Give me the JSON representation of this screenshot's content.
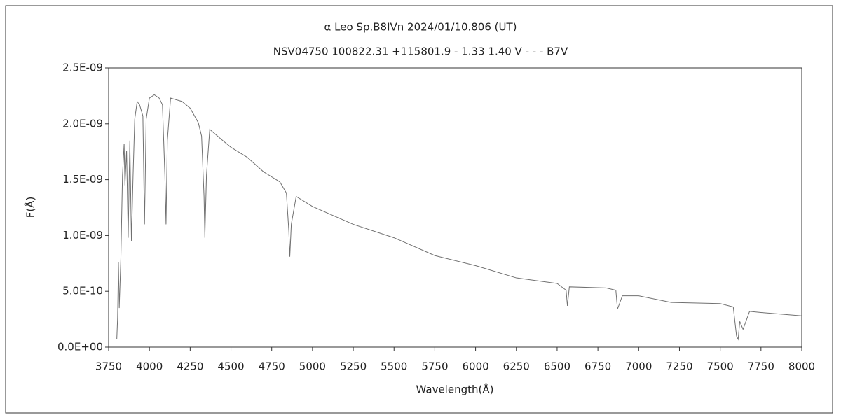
{
  "chart_data": {
    "type": "line",
    "title": "α Leo   Sp.B8IVn   2024/01/10.806 (UT)",
    "subtitle": "NSV04750 100822.31 +115801.9 - 1.33 1.40 V - - - B7V",
    "x_label": "Wavelength(Å)",
    "y_label": "F(Å)",
    "xlim": [
      3750,
      8000
    ],
    "xticks": [
      3750,
      4000,
      4250,
      4500,
      4750,
      5000,
      5250,
      5500,
      5750,
      6000,
      6250,
      6500,
      6750,
      7000,
      7250,
      7500,
      7750,
      8000
    ],
    "ylim": [
      0,
      2.5e-09
    ],
    "yticks": [
      {
        "value": 0,
        "label": "0.0E+00"
      },
      {
        "value": 5e-10,
        "label": "5.0E-10"
      },
      {
        "value": 1e-09,
        "label": "1.0E-09"
      },
      {
        "value": 1.5e-09,
        "label": "1.5E-09"
      },
      {
        "value": 2e-09,
        "label": "2.0E-09"
      },
      {
        "value": 2.5e-09,
        "label": "2.5E-09"
      }
    ],
    "grid": false,
    "series": [
      {
        "color": "#707070",
        "x": [
          3800,
          3805,
          3810,
          3815,
          3825,
          3835,
          3845,
          3850,
          3860,
          3870,
          3880,
          3890,
          3900,
          3910,
          3925,
          3940,
          3960,
          3970,
          3980,
          4000,
          4030,
          4060,
          4080,
          4095,
          4102,
          4110,
          4130,
          4200,
          4250,
          4300,
          4320,
          4335,
          4340,
          4350,
          4370,
          4450,
          4500,
          4600,
          4700,
          4800,
          4840,
          4855,
          4861,
          4870,
          4900,
          5000,
          5250,
          5500,
          5750,
          6000,
          6250,
          6500,
          6555,
          6563,
          6575,
          6800,
          6860,
          6870,
          6900,
          7000,
          7200,
          7500,
          7580,
          7600,
          7610,
          7620,
          7640,
          7680,
          7750,
          8000
        ],
        "values": [
          7e-11,
          2.6e-10,
          7.6e-10,
          3.5e-10,
          7.9e-10,
          1.54e-09,
          1.82e-09,
          1.45e-09,
          1.76e-09,
          9.8e-10,
          1.85e-09,
          9.5e-10,
          1.54e-09,
          2.04e-09,
          2.2e-09,
          2.17e-09,
          2.07e-09,
          1.1e-09,
          2.04e-09,
          2.23e-09,
          2.26e-09,
          2.23e-09,
          2.17e-09,
          1.54e-09,
          1.1e-09,
          1.85e-09,
          2.23e-09,
          2.2e-09,
          2.14e-09,
          2.01e-09,
          1.89e-09,
          1.35e-09,
          9.8e-10,
          1.54e-09,
          1.95e-09,
          1.85e-09,
          1.79e-09,
          1.7e-09,
          1.57e-09,
          1.48e-09,
          1.38e-09,
          1.04e-09,
          8.1e-10,
          1.1e-09,
          1.35e-09,
          1.26e-09,
          1.1e-09,
          9.8e-10,
          8.2e-10,
          7.3e-10,
          6.2e-10,
          5.7e-10,
          5.1e-10,
          3.7e-10,
          5.4e-10,
          5.3e-10,
          5.1e-10,
          3.4e-10,
          4.6e-10,
          4.6e-10,
          4e-10,
          3.9e-10,
          3.6e-10,
          1e-10,
          7e-11,
          2.3e-10,
          1.6e-10,
          3.2e-10,
          3.1e-10,
          2.8e-10
        ]
      }
    ]
  }
}
